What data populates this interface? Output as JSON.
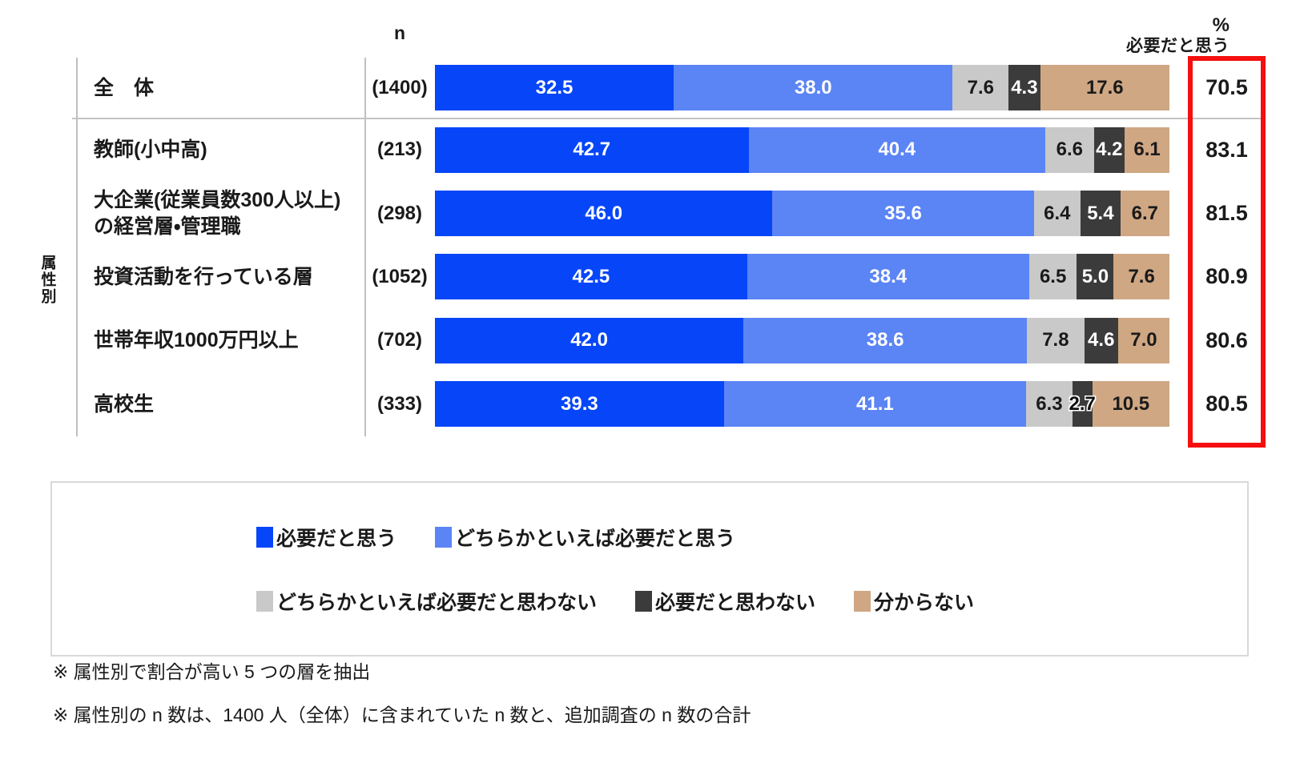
{
  "header": {
    "n_label": "n",
    "unit_label": "%",
    "total_column_label": "必要だと思う"
  },
  "side": {
    "group_axis_label": "属性別"
  },
  "chart_data": {
    "type": "bar",
    "stacked": true,
    "orientation": "horizontal",
    "value_unit": "%",
    "x_range": [
      0,
      100
    ],
    "legend_position": "bottom",
    "series": [
      {
        "name": "必要だと思う",
        "color": "#0646f8",
        "label_color": "#ffffff"
      },
      {
        "name": "どちらかといえば必要だと思う",
        "color": "#5b84f5",
        "label_color": "#ffffff"
      },
      {
        "name": "どちらかといえば必要だと思わない",
        "color": "#c9c9c9",
        "label_color": "#1a1a1a"
      },
      {
        "name": "必要だと思わない",
        "color": "#3b3b3b",
        "label_color": "#ffffff"
      },
      {
        "name": "分からない",
        "color": "#cfa783",
        "label_color": "#1a1a1a"
      }
    ],
    "rows": [
      {
        "label": "全　体",
        "n": "(1400)",
        "values": [
          "32.5",
          "38.0",
          "7.6",
          "4.3",
          "17.6"
        ],
        "total": "70.5"
      },
      {
        "label": "教師(小中高)",
        "n": "(213)",
        "values": [
          "42.7",
          "40.4",
          "6.6",
          "4.2",
          "6.1"
        ],
        "total": "83.1"
      },
      {
        "label": "大企業(従業員数300人以上)\nの経営層・管理職",
        "n": "(298)",
        "values": [
          "46.0",
          "35.6",
          "6.4",
          "5.4",
          "6.7"
        ],
        "total": "81.5"
      },
      {
        "label": "投資活動を行っている層",
        "n": "(1052)",
        "values": [
          "42.5",
          "38.4",
          "6.5",
          "5.0",
          "7.6"
        ],
        "total": "80.9"
      },
      {
        "label": "世帯年収1000万円以上",
        "n": "(702)",
        "values": [
          "42.0",
          "38.6",
          "7.8",
          "4.6",
          "7.0"
        ],
        "total": "80.6"
      },
      {
        "label": "高校生",
        "n": "(333)",
        "values": [
          "39.3",
          "41.1",
          "6.3",
          "2.7",
          "10.5"
        ],
        "total": "80.5"
      }
    ]
  },
  "colors": {
    "highlight_box": "#f50f0f",
    "table_line": "#bfbfbf",
    "legend_border": "#d9d9d9",
    "text": "#1a1a1a"
  },
  "footnotes": [
    "※ 属性別で割合が高い 5 つの層を抽出",
    "※ 属性別の n 数は、1400 人（全体）に含まれていた n 数と、追加調査の n 数の合計"
  ]
}
